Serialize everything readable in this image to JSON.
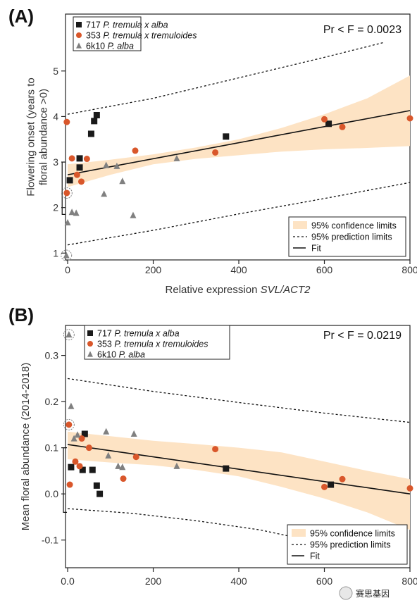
{
  "colors": {
    "square": "#1a1a1a",
    "circle": "#d9572b",
    "triangle": "#808080",
    "band": "#fde3c4",
    "fit": "#111111"
  },
  "watermark": "赛思基因",
  "chart_data": [
    {
      "panel": "(A)",
      "type": "scatter",
      "xlabel_prefix": "Relative expression ",
      "xlabel_italic": "SVL/ACT2",
      "ylabel_lines": [
        "Flowering onset (years to",
        "floral abundance >0)"
      ],
      "xlim": [
        -5,
        800
      ],
      "ylim": [
        0.85,
        6.25
      ],
      "xticks": [
        0,
        200,
        400,
        600,
        800
      ],
      "xtick_labels": [
        "0",
        "200",
        "400",
        "600",
        "800"
      ],
      "yticks": [
        1,
        2,
        3,
        4,
        5
      ],
      "ytick_labels": [
        "1",
        "2",
        "3",
        "4",
        "5"
      ],
      "stat_text": "Pr < F = 0.0023",
      "legend": [
        {
          "marker": "square",
          "id": "717",
          "name": "P. tremula x alba",
          "suffix": ""
        },
        {
          "marker": "circle",
          "id": "353",
          "name": "P. tremula x tremuloides",
          "suffix": ""
        },
        {
          "marker": "triangle",
          "id": "6k10",
          "name": "P. alba",
          "suffix": ""
        }
      ],
      "legend2": [
        {
          "kind": "band",
          "label": "95% confidence limits"
        },
        {
          "kind": "dash",
          "label": "95% prediction limits"
        },
        {
          "kind": "line",
          "label": "Fit"
        }
      ],
      "series": [
        {
          "name": "717 P. tremula x alba",
          "marker": "square",
          "x": [
            5,
            28,
            28,
            55,
            62,
            68,
            370,
            610
          ],
          "y": [
            2.6,
            2.88,
            3.08,
            3.62,
            3.9,
            4.03,
            3.56,
            3.84
          ]
        },
        {
          "name": "353 P. tremula x tremuloides",
          "marker": "circle",
          "x": [
            -2,
            -2,
            10,
            22,
            32,
            45,
            158,
            345,
            600,
            642,
            800
          ],
          "y": [
            2.32,
            3.88,
            3.08,
            2.72,
            2.57,
            3.07,
            3.25,
            3.21,
            3.94,
            3.77,
            3.96
          ]
        },
        {
          "name": "6k10 P. alba",
          "marker": "triangle",
          "x": [
            -3,
            0,
            10,
            20,
            85,
            90,
            115,
            128,
            153,
            255
          ],
          "y": [
            0.95,
            1.67,
            1.9,
            1.88,
            2.3,
            2.93,
            2.91,
            2.58,
            1.83,
            3.08
          ]
        }
      ],
      "fit": {
        "x": [
          0,
          800
        ],
        "y": [
          2.72,
          4.13
        ]
      },
      "conf_upper": {
        "x": [
          0,
          100,
          200,
          300,
          400,
          500,
          600,
          700,
          800
        ],
        "y": [
          2.95,
          3.05,
          3.17,
          3.32,
          3.5,
          3.75,
          4.05,
          4.4,
          4.9
        ]
      },
      "conf_lower": {
        "x": [
          0,
          100,
          200,
          300,
          400,
          500,
          600,
          700,
          800
        ],
        "y": [
          2.45,
          2.72,
          2.95,
          3.07,
          3.15,
          3.23,
          3.28,
          3.31,
          3.35
        ]
      },
      "pred_upper": {
        "x": [
          0,
          200,
          400,
          600,
          740
        ],
        "y": [
          4.05,
          4.4,
          4.85,
          5.3,
          5.63
        ]
      },
      "pred_lower": {
        "x": [
          0,
          200,
          400,
          600,
          800
        ],
        "y": [
          1.18,
          1.5,
          1.86,
          2.2,
          2.55
        ]
      },
      "circled_points": [
        {
          "x": -2,
          "y": 2.32
        },
        {
          "x": -3,
          "y": 0.95
        }
      ],
      "bracket": {
        "x": -3,
        "y": [
          1.85,
          3.0
        ]
      }
    },
    {
      "panel": "(B)",
      "type": "scatter",
      "ylabel_lines": [
        "Mean floral abundance (2014-2018)"
      ],
      "xlim": [
        -5,
        800
      ],
      "ylim": [
        -0.16,
        0.365
      ],
      "xticks": [
        0,
        200,
        400,
        600,
        800
      ],
      "xtick_labels": [
        "0.0",
        "200",
        "400",
        "600",
        "800"
      ],
      "yticks": [
        -0.1,
        0.0,
        0.1,
        0.2,
        0.3
      ],
      "ytick_labels": [
        "-0.1",
        "0.0",
        "0.1",
        "0.2",
        "0.3"
      ],
      "stat_text": "Pr < F = 0.0219",
      "legend": [
        {
          "marker": "square",
          "id": "717",
          "name": "P. tremula x alba",
          "suffix": ""
        },
        {
          "marker": "circle",
          "id": "353",
          "name": "P. tremula x tremuloides",
          "suffix": ""
        },
        {
          "marker": "triangle",
          "id": "6k10",
          "name": "P. alba",
          "suffix": ""
        }
      ],
      "legend2": [
        {
          "kind": "band",
          "label": "95% confidence limits"
        },
        {
          "kind": "dash",
          "label": "95% prediction limits"
        },
        {
          "kind": "line",
          "label": "Fit"
        }
      ],
      "series": [
        {
          "name": "717 P. tremula x alba",
          "marker": "square",
          "x": [
            8,
            35,
            40,
            58,
            68,
            75,
            370,
            615
          ],
          "y": [
            0.058,
            0.052,
            0.13,
            0.052,
            0.018,
            0.0,
            0.055,
            0.02
          ]
        },
        {
          "name": "353 P. tremula x tremuloides",
          "marker": "circle",
          "x": [
            3,
            5,
            18,
            28,
            33,
            50,
            130,
            160,
            345,
            600,
            642,
            800
          ],
          "y": [
            0.15,
            0.02,
            0.07,
            0.06,
            0.12,
            0.1,
            0.033,
            0.08,
            0.097,
            0.015,
            0.032,
            0.012
          ]
        },
        {
          "name": "6k10 P. alba",
          "marker": "triangle",
          "x": [
            3,
            8,
            15,
            23,
            90,
            95,
            118,
            128,
            155,
            255
          ],
          "y": [
            0.345,
            0.19,
            0.12,
            0.128,
            0.135,
            0.083,
            0.06,
            0.058,
            0.13,
            0.06
          ]
        }
      ],
      "fit": {
        "x": [
          0,
          800
        ],
        "y": [
          0.107,
          -0.0
        ]
      },
      "conf_upper": {
        "x": [
          0,
          100,
          200,
          300,
          400,
          500,
          600,
          700,
          800
        ],
        "y": [
          0.135,
          0.125,
          0.115,
          0.108,
          0.1,
          0.09,
          0.07,
          0.05,
          0.032
        ]
      },
      "conf_lower": {
        "x": [
          0,
          100,
          200,
          300,
          400,
          500,
          600,
          700,
          800
        ],
        "y": [
          0.075,
          0.068,
          0.062,
          0.052,
          0.038,
          0.015,
          -0.01,
          -0.04,
          -0.078
        ]
      },
      "pred_upper": {
        "x": [
          0,
          200,
          400,
          600,
          800
        ],
        "y": [
          0.25,
          0.222,
          0.198,
          0.175,
          0.155
        ]
      },
      "pred_lower": {
        "x": [
          0,
          150,
          300,
          450,
          520
        ],
        "y": [
          -0.032,
          -0.042,
          -0.058,
          -0.078,
          -0.092
        ]
      },
      "circled_points": [
        {
          "x": 3,
          "y": 0.345
        },
        {
          "x": 3,
          "y": 0.15
        }
      ],
      "bracket": {
        "x": 0,
        "y": [
          -0.04,
          0.1
        ]
      }
    }
  ]
}
